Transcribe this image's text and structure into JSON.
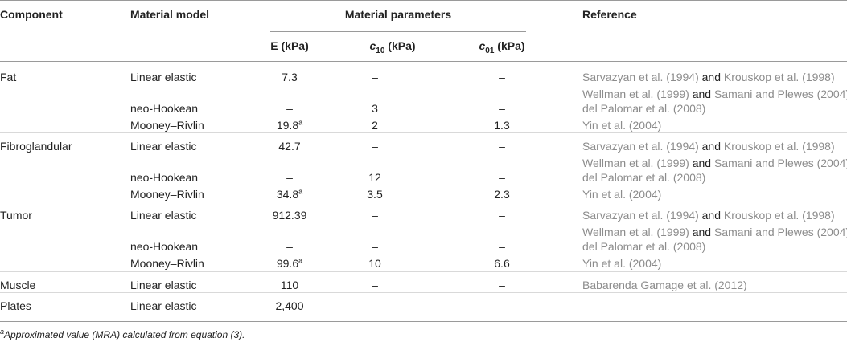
{
  "headers": {
    "component": "Component",
    "material_model": "Material model",
    "material_parameters": "Material parameters",
    "reference": "Reference",
    "e": "E (kPa)",
    "c10_sym": "c",
    "c10_sub": "10",
    "c10_unit": " (kPa)",
    "c01_sym": "c",
    "c01_sub": "01",
    "c01_unit": " (kPa)"
  },
  "rows": [
    {
      "component": "Fat",
      "model": "Linear elastic",
      "e": "7.3",
      "e_sup": "",
      "c10": "–",
      "c01": "–",
      "ref": {
        "a": "Sarvazyan et al. (1994)",
        "and": " and ",
        "b": "Krouskop et al. (1998)"
      }
    },
    {
      "component": "",
      "model": "",
      "e": "",
      "e_sup": "",
      "c10": "",
      "c01": "",
      "ref": {
        "a": "Wellman et al. (1999)",
        "and": " and ",
        "b": "Samani and Plewes (2004)"
      }
    },
    {
      "component": "",
      "model": "neo-Hookean",
      "e": "–",
      "e_sup": "",
      "c10": "3",
      "c01": "–",
      "ref": {
        "a": "del Palomar et al. (2008)",
        "and": "",
        "b": ""
      }
    },
    {
      "component": "",
      "model": "Mooney–Rivlin",
      "e": "19.8",
      "e_sup": "a",
      "c10": "2",
      "c01": "1.3",
      "ref": {
        "a": "Yin et al. (2004)",
        "and": "",
        "b": ""
      }
    },
    {
      "component": "Fibroglandular",
      "model": "Linear elastic",
      "e": "42.7",
      "e_sup": "",
      "c10": "–",
      "c01": "–",
      "ref": {
        "a": "Sarvazyan et al. (1994)",
        "and": " and ",
        "b": "Krouskop et al. (1998)"
      }
    },
    {
      "component": "",
      "model": "",
      "e": "",
      "e_sup": "",
      "c10": "",
      "c01": "",
      "ref": {
        "a": "Wellman et al. (1999)",
        "and": " and ",
        "b": "Samani and Plewes (2004)"
      }
    },
    {
      "component": "",
      "model": "neo-Hookean",
      "e": "–",
      "e_sup": "",
      "c10": "12",
      "c01": "–",
      "ref": {
        "a": "del Palomar et al. (2008)",
        "and": "",
        "b": ""
      }
    },
    {
      "component": "",
      "model": "Mooney–Rivlin",
      "e": "34.8",
      "e_sup": "a",
      "c10": "3.5",
      "c01": "2.3",
      "ref": {
        "a": "Yin et al. (2004)",
        "and": "",
        "b": ""
      }
    },
    {
      "component": "Tumor",
      "model": "Linear elastic",
      "e": "912.39",
      "e_sup": "",
      "c10": "–",
      "c01": "–",
      "ref": {
        "a": "Sarvazyan et al. (1994)",
        "and": " and ",
        "b": "Krouskop et al. (1998)"
      }
    },
    {
      "component": "",
      "model": "",
      "e": "",
      "e_sup": "",
      "c10": "",
      "c01": "",
      "ref": {
        "a": "Wellman et al. (1999)",
        "and": " and ",
        "b": "Samani and Plewes (2004)"
      }
    },
    {
      "component": "",
      "model": "neo-Hookean",
      "e": "–",
      "e_sup": "",
      "c10": "–",
      "c01": "–",
      "ref": {
        "a": "del Palomar et al. (2008)",
        "and": "",
        "b": ""
      }
    },
    {
      "component": "",
      "model": "Mooney–Rivlin",
      "e": "99.6",
      "e_sup": "a",
      "c10": "10",
      "c01": "6.6",
      "ref": {
        "a": "Yin et al. (2004)",
        "and": "",
        "b": ""
      }
    },
    {
      "component": "Muscle",
      "model": "Linear elastic",
      "e": "110",
      "e_sup": "",
      "c10": "–",
      "c01": "–",
      "ref": {
        "a": "Babarenda Gamage et al. (2012)",
        "and": "",
        "b": ""
      }
    },
    {
      "component": "Plates",
      "model": "Linear elastic",
      "e": "2,400",
      "e_sup": "",
      "c10": "–",
      "c01": "–",
      "ref": {
        "a": "–",
        "and": "",
        "b": ""
      }
    }
  ],
  "footnote": {
    "sup": "a",
    "text": "Approximated value (MRA) calculated from equation (3)."
  }
}
